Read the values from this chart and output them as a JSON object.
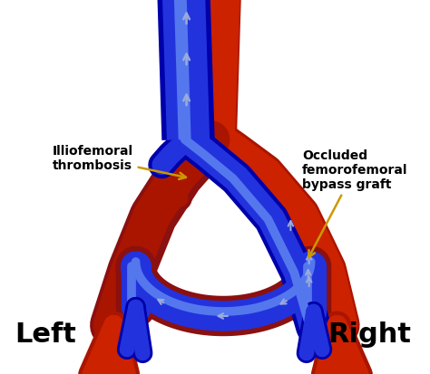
{
  "bg_color": "#ffffff",
  "art_dark": "#8B1010",
  "art_bright": "#CC2200",
  "art_mid": "#AA1500",
  "vein_dark": "#0000AA",
  "vein_bright": "#2233DD",
  "vein_mid": "#1122CC",
  "vein_highlight": "#5577EE",
  "arrow_color": "#8899CC",
  "annotation_color": "#CC9900",
  "label_left": "Illiofemoral\nthrombosis",
  "label_right": "Occluded\nfemorofemoral\nbypass graft",
  "text_left": "Left",
  "text_right": "Right",
  "fontsize_annot": 10,
  "fontsize_sides": 22
}
